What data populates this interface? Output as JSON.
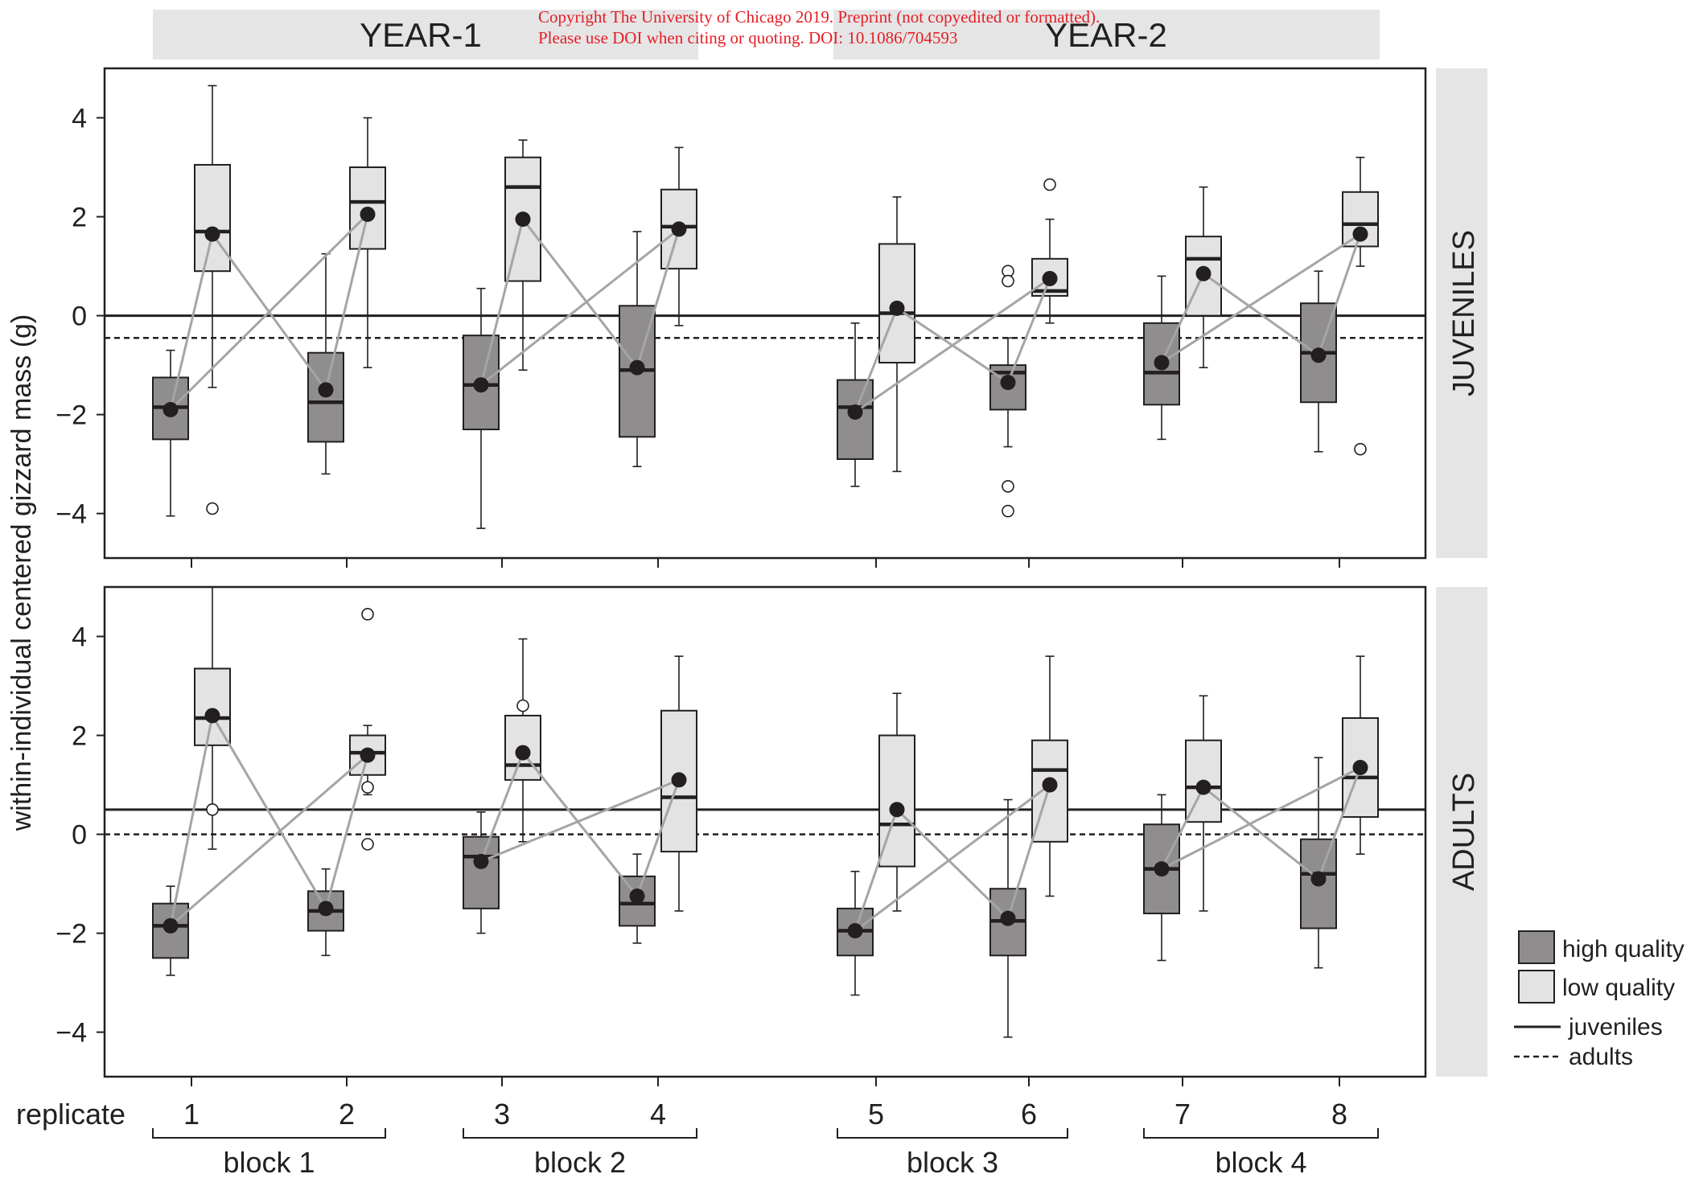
{
  "watermark": {
    "line1": "Copyright The University of Chicago 2019. Preprint (not copyedited or formatted).",
    "line2": "Please use DOI when citing or quoting. DOI: 10.1086/704593"
  },
  "colors": {
    "high_quality_fill": "#8f8d8e",
    "low_quality_fill": "#e3e3e4",
    "strip_fill": "#e5e5e6",
    "connector_line": "#a5a5a5",
    "ink": "#231f20"
  },
  "chart_data": {
    "type": "boxplot",
    "ylabel": "within-individual centered gizzard mass (g)",
    "ylim": [
      -4.9,
      5.0
    ],
    "yticks": [
      -4,
      -2,
      0,
      2,
      4
    ],
    "year_labels": [
      "YEAR-1",
      "YEAR-2"
    ],
    "replicate_label": "replicate",
    "replicates": [
      "1",
      "2",
      "3",
      "4",
      "5",
      "6",
      "7",
      "8"
    ],
    "blocks": [
      {
        "label": "block 1",
        "replicates": [
          1,
          2
        ]
      },
      {
        "label": "block 2",
        "replicates": [
          3,
          4
        ]
      },
      {
        "label": "block 3",
        "replicates": [
          5,
          6
        ]
      },
      {
        "label": "block 4",
        "replicates": [
          7,
          8
        ]
      }
    ],
    "legend": {
      "high": "high quality",
      "low": "low quality",
      "juveniles": "juveniles",
      "adults": "adults"
    },
    "panels": [
      {
        "label": "JUVENILES",
        "juvenile_ref": 0.0,
        "adult_ref": -0.45,
        "groups": [
          {
            "replicate": 1,
            "diet": "high",
            "min": -4.05,
            "q1": -2.5,
            "median": -1.85,
            "q3": -1.25,
            "max": -0.7,
            "mean": -1.9,
            "outliers": []
          },
          {
            "replicate": 1,
            "diet": "low",
            "min": -1.45,
            "q1": 0.9,
            "median": 1.7,
            "q3": 3.05,
            "max": 4.65,
            "mean": 1.65,
            "outliers": [
              -3.9
            ]
          },
          {
            "replicate": 2,
            "diet": "high",
            "min": -3.2,
            "q1": -2.55,
            "median": -1.75,
            "q3": -0.75,
            "max": 1.25,
            "mean": -1.5,
            "outliers": []
          },
          {
            "replicate": 2,
            "diet": "low",
            "min": -1.05,
            "q1": 1.35,
            "median": 2.3,
            "q3": 3.0,
            "max": 4.0,
            "mean": 2.05,
            "outliers": []
          },
          {
            "replicate": 3,
            "diet": "high",
            "min": -4.3,
            "q1": -2.3,
            "median": -1.4,
            "q3": -0.4,
            "max": 0.55,
            "mean": -1.4,
            "outliers": []
          },
          {
            "replicate": 3,
            "diet": "low",
            "min": -1.1,
            "q1": 0.7,
            "median": 2.6,
            "q3": 3.2,
            "max": 3.55,
            "mean": 1.95,
            "outliers": []
          },
          {
            "replicate": 4,
            "diet": "high",
            "min": -3.05,
            "q1": -2.45,
            "median": -1.1,
            "q3": 0.2,
            "max": 1.7,
            "mean": -1.05,
            "outliers": []
          },
          {
            "replicate": 4,
            "diet": "low",
            "min": -0.2,
            "q1": 0.95,
            "median": 1.8,
            "q3": 2.55,
            "max": 3.4,
            "mean": 1.75,
            "outliers": []
          },
          {
            "replicate": 5,
            "diet": "high",
            "min": -3.45,
            "q1": -2.9,
            "median": -1.85,
            "q3": -1.3,
            "max": -0.15,
            "mean": -1.95,
            "outliers": []
          },
          {
            "replicate": 5,
            "diet": "low",
            "min": -3.15,
            "q1": -0.95,
            "median": 0.05,
            "q3": 1.45,
            "max": 2.4,
            "mean": 0.15,
            "outliers": []
          },
          {
            "replicate": 6,
            "diet": "high",
            "min": -2.65,
            "q1": -1.9,
            "median": -1.15,
            "q3": -1.0,
            "max": -0.45,
            "mean": -1.35,
            "outliers": [
              0.9,
              0.7,
              -3.45,
              -3.95
            ]
          },
          {
            "replicate": 6,
            "diet": "low",
            "min": -0.15,
            "q1": 0.4,
            "median": 0.5,
            "q3": 1.15,
            "max": 1.95,
            "mean": 0.75,
            "outliers": [
              2.65
            ]
          },
          {
            "replicate": 7,
            "diet": "high",
            "min": -2.5,
            "q1": -1.8,
            "median": -1.15,
            "q3": -0.15,
            "max": 0.8,
            "mean": -0.95,
            "outliers": []
          },
          {
            "replicate": 7,
            "diet": "low",
            "min": -1.05,
            "q1": 0.0,
            "median": 1.15,
            "q3": 1.6,
            "max": 2.6,
            "mean": 0.85,
            "outliers": []
          },
          {
            "replicate": 8,
            "diet": "high",
            "min": -2.75,
            "q1": -1.75,
            "median": -0.75,
            "q3": 0.25,
            "max": 0.9,
            "mean": -0.8,
            "outliers": []
          },
          {
            "replicate": 8,
            "diet": "low",
            "min": 1.0,
            "q1": 1.4,
            "median": 1.85,
            "q3": 2.5,
            "max": 3.2,
            "mean": 1.65,
            "outliers": [
              -2.7
            ]
          }
        ]
      },
      {
        "label": "ADULTS",
        "juvenile_ref": 0.5,
        "adult_ref": 0.0,
        "groups": [
          {
            "replicate": 1,
            "diet": "high",
            "min": -2.85,
            "q1": -2.5,
            "median": -1.85,
            "q3": -1.4,
            "max": -1.05,
            "mean": -1.85,
            "outliers": []
          },
          {
            "replicate": 1,
            "diet": "low",
            "min": -0.3,
            "q1": 1.8,
            "median": 2.35,
            "q3": 3.35,
            "max": 5.0,
            "mean": 2.4,
            "outliers": [
              0.5
            ]
          },
          {
            "replicate": 2,
            "diet": "high",
            "min": -2.45,
            "q1": -1.95,
            "median": -1.55,
            "q3": -1.15,
            "max": -0.7,
            "mean": -1.5,
            "outliers": []
          },
          {
            "replicate": 2,
            "diet": "low",
            "min": 0.8,
            "q1": 1.2,
            "median": 1.65,
            "q3": 2.0,
            "max": 2.2,
            "mean": 1.6,
            "outliers": [
              4.45,
              0.95,
              -0.2
            ]
          },
          {
            "replicate": 3,
            "diet": "high",
            "min": -2.0,
            "q1": -1.5,
            "median": -0.45,
            "q3": -0.05,
            "max": 0.45,
            "mean": -0.55,
            "outliers": []
          },
          {
            "replicate": 3,
            "diet": "low",
            "min": -0.15,
            "q1": 1.1,
            "median": 1.4,
            "q3": 2.4,
            "max": 3.95,
            "mean": 1.65,
            "outliers": [
              2.6
            ]
          },
          {
            "replicate": 4,
            "diet": "high",
            "min": -2.2,
            "q1": -1.85,
            "median": -1.4,
            "q3": -0.85,
            "max": -0.4,
            "mean": -1.25,
            "outliers": []
          },
          {
            "replicate": 4,
            "diet": "low",
            "min": -1.55,
            "q1": -0.35,
            "median": 0.75,
            "q3": 2.5,
            "max": 3.6,
            "mean": 1.1,
            "outliers": []
          },
          {
            "replicate": 5,
            "diet": "high",
            "min": -3.25,
            "q1": -2.45,
            "median": -1.95,
            "q3": -1.5,
            "max": -0.75,
            "mean": -1.95,
            "outliers": []
          },
          {
            "replicate": 5,
            "diet": "low",
            "min": -1.55,
            "q1": -0.65,
            "median": 0.2,
            "q3": 2.0,
            "max": 2.85,
            "mean": 0.5,
            "outliers": []
          },
          {
            "replicate": 6,
            "diet": "high",
            "min": -4.1,
            "q1": -2.45,
            "median": -1.75,
            "q3": -1.1,
            "max": 0.7,
            "mean": -1.7,
            "outliers": []
          },
          {
            "replicate": 6,
            "diet": "low",
            "min": -1.25,
            "q1": -0.15,
            "median": 1.3,
            "q3": 1.9,
            "max": 3.6,
            "mean": 1.0,
            "outliers": []
          },
          {
            "replicate": 7,
            "diet": "high",
            "min": -2.55,
            "q1": -1.6,
            "median": -0.7,
            "q3": 0.2,
            "max": 0.8,
            "mean": -0.7,
            "outliers": []
          },
          {
            "replicate": 7,
            "diet": "low",
            "min": -1.55,
            "q1": 0.25,
            "median": 0.95,
            "q3": 1.9,
            "max": 2.8,
            "mean": 0.95,
            "outliers": []
          },
          {
            "replicate": 8,
            "diet": "high",
            "min": -2.7,
            "q1": -1.9,
            "median": -0.8,
            "q3": -0.1,
            "max": 1.55,
            "mean": -0.9,
            "outliers": []
          },
          {
            "replicate": 8,
            "diet": "low",
            "min": -0.4,
            "q1": 0.35,
            "median": 1.15,
            "q3": 2.35,
            "max": 3.6,
            "mean": 1.35,
            "outliers": []
          }
        ]
      }
    ]
  }
}
